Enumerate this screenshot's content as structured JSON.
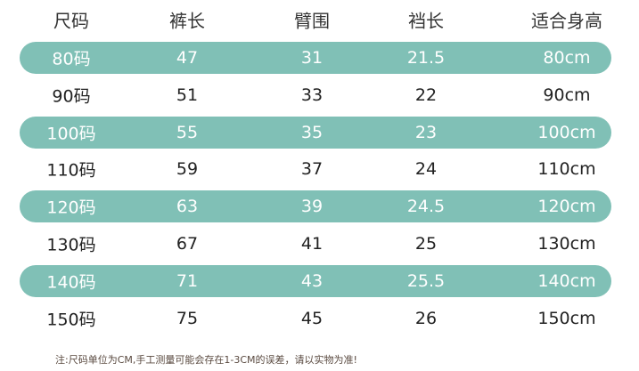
{
  "table": {
    "header": [
      "尺码",
      "裤长",
      "臂围",
      "裆长",
      "适合身高"
    ],
    "rows": [
      [
        "80码",
        "47",
        "31",
        "21.5",
        "80cm"
      ],
      [
        "90码",
        "51",
        "33",
        "22",
        "90cm"
      ],
      [
        "100码",
        "55",
        "35",
        "23",
        "100cm"
      ],
      [
        "110码",
        "59",
        "37",
        "24",
        "110cm"
      ],
      [
        "120码",
        "63",
        "39",
        "24.5",
        "120cm"
      ],
      [
        "130码",
        "67",
        "41",
        "25",
        "130cm"
      ],
      [
        "140码",
        "71",
        "43",
        "25.5",
        "140cm"
      ],
      [
        "150码",
        "75",
        "45",
        "26",
        "150cm"
      ]
    ]
  },
  "note": "注:尺码单位为CM,手工测量可能会存在1-3CM的误差，请以实物为准!"
}
